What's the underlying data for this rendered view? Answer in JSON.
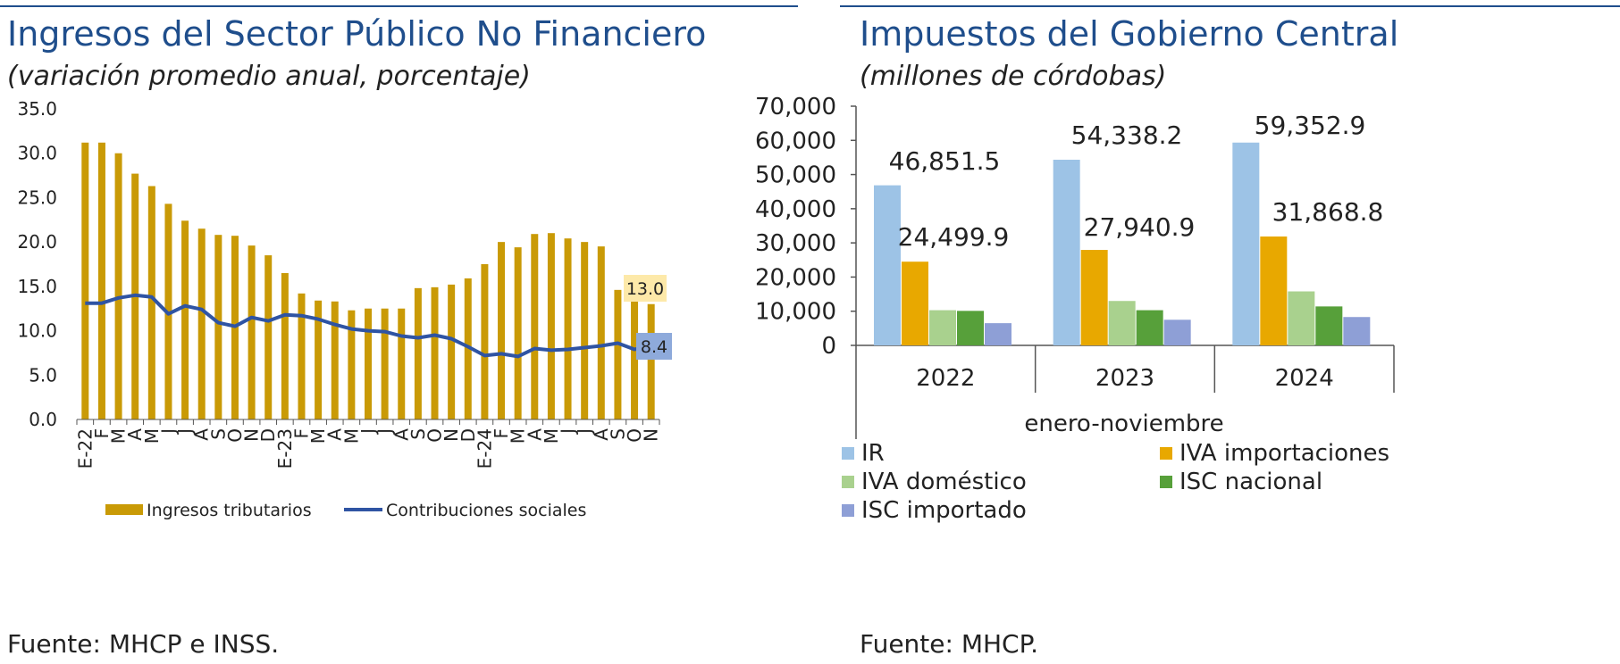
{
  "left": {
    "title": "Ingresos del Sector Público No Financiero",
    "subtitle": "(variación promedio anual, porcentaje)",
    "source": "Fuente: MHCP e INSS.",
    "colors": {
      "bars": "#c99a06",
      "line": "#2f54a3",
      "label13_bg": "#fde9a9",
      "label84_bg": "#8eaadb"
    }
  },
  "right": {
    "title": "Impuestos del Gobierno Central",
    "subtitle": "(millones de córdobas)",
    "source": "Fuente: MHCP.",
    "axis_title": "enero-noviembre",
    "colors": {
      "IR": "#9dc3e6",
      "IVA importaciones": "#e8a800",
      "IVA doméstico": "#a9d18e",
      "ISC nacional": "#57a03a",
      "ISC importado": "#8e9fd6"
    }
  },
  "chart_data": [
    {
      "type": "bar",
      "title": "Ingresos del Sector Público No Financiero",
      "subtitle": "(variación promedio anual, porcentaje)",
      "xlabel": "",
      "ylabel": "",
      "ylim": [
        0,
        35
      ],
      "yticks": [
        "0.0",
        "5.0",
        "10.0",
        "15.0",
        "20.0",
        "25.0",
        "30.0",
        "35.0"
      ],
      "categories": [
        "E-22",
        "F",
        "M",
        "A",
        "M",
        "J",
        "J",
        "A",
        "S",
        "O",
        "N",
        "D",
        "E-23",
        "F",
        "M",
        "A",
        "M",
        "J",
        "J",
        "A",
        "S",
        "O",
        "N",
        "D",
        "E-24",
        "F",
        "M",
        "A",
        "M",
        "J",
        "J",
        "A",
        "S",
        "O",
        "N"
      ],
      "series": [
        {
          "name": "Ingresos tributarios",
          "type": "bar",
          "values": [
            31.2,
            31.2,
            30.0,
            27.7,
            26.3,
            24.3,
            22.4,
            21.5,
            20.8,
            20.7,
            19.6,
            18.5,
            16.5,
            14.2,
            13.4,
            13.3,
            12.3,
            12.5,
            12.5,
            12.5,
            14.8,
            14.9,
            15.2,
            15.9,
            17.5,
            20.0,
            19.4,
            20.9,
            21.0,
            20.4,
            20.0,
            19.5,
            14.6,
            13.4,
            13.0
          ]
        },
        {
          "name": "Contribuciones sociales",
          "type": "line",
          "values": [
            13.1,
            13.1,
            13.7,
            14.0,
            13.8,
            11.9,
            12.8,
            12.4,
            10.9,
            10.5,
            11.5,
            11.1,
            11.8,
            11.7,
            11.3,
            10.7,
            10.2,
            10.0,
            9.9,
            9.4,
            9.2,
            9.5,
            9.1,
            8.2,
            7.2,
            7.4,
            7.1,
            8.0,
            7.8,
            7.9,
            8.1,
            8.3,
            8.6,
            7.9,
            8.4
          ]
        }
      ],
      "data_labels": {
        "last_bar": "13.0",
        "last_line": "8.4"
      },
      "legend": [
        "Ingresos tributarios",
        "Contribuciones sociales"
      ],
      "legend_position": "bottom"
    },
    {
      "type": "bar",
      "title": "Impuestos del Gobierno Central",
      "subtitle": "(millones de córdobas)",
      "xlabel": "enero-noviembre",
      "ylabel": "",
      "ylim": [
        0,
        70000
      ],
      "yticks": [
        "0",
        "10,000",
        "20,000",
        "30,000",
        "40,000",
        "50,000",
        "60,000",
        "70,000"
      ],
      "categories": [
        "2022",
        "2023",
        "2024"
      ],
      "series": [
        {
          "name": "IR",
          "values": [
            46851.5,
            54338.2,
            59352.9
          ]
        },
        {
          "name": "IVA importaciones",
          "values": [
            24499.9,
            27940.9,
            31868.8
          ]
        },
        {
          "name": "IVA doméstico",
          "values": [
            10300,
            13000,
            15800
          ]
        },
        {
          "name": "ISC nacional",
          "values": [
            10100,
            10300,
            11400
          ]
        },
        {
          "name": "ISC importado",
          "values": [
            6500,
            7500,
            8300
          ]
        }
      ],
      "data_labels": {
        "IR": [
          "46,851.5",
          "54,338.2",
          "59,352.9"
        ],
        "IVA importaciones": [
          "24,499.9",
          "27,940.9",
          "31,868.8"
        ]
      },
      "legend": [
        "IR",
        "IVA importaciones",
        "IVA doméstico",
        "ISC nacional",
        "ISC importado"
      ],
      "legend_position": "bottom"
    }
  ]
}
